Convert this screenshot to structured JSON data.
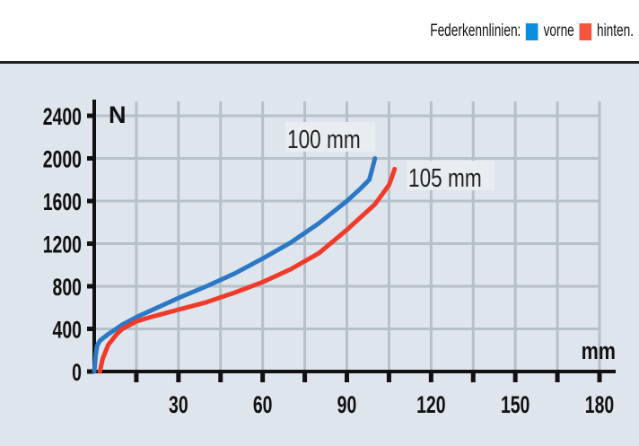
{
  "legend": {
    "title": "Federkennlinien:",
    "items": [
      {
        "label": "vorne",
        "color": "#0a8ee0"
      },
      {
        "label": "hinten.",
        "color": "#f4553a"
      }
    ]
  },
  "chart_data": {
    "type": "line",
    "title": "",
    "xlabel": "mm",
    "ylabel": "N",
    "xlim": [
      0,
      180
    ],
    "ylim": [
      0,
      2400
    ],
    "xticks": [
      30,
      60,
      90,
      120,
      150,
      180
    ],
    "yticks": [
      0,
      400,
      800,
      1200,
      1600,
      2000,
      2400
    ],
    "grid": true,
    "series": [
      {
        "name": "vorne",
        "color": "#2a78c6",
        "end_label": "100 mm",
        "x": [
          0,
          0.5,
          1,
          2,
          5,
          10,
          15,
          20,
          30,
          40,
          50,
          60,
          70,
          80,
          90,
          95,
          98,
          99,
          100
        ],
        "y": [
          0,
          150,
          240,
          290,
          350,
          440,
          510,
          570,
          690,
          800,
          920,
          1060,
          1210,
          1390,
          1600,
          1720,
          1800,
          1900,
          2000
        ]
      },
      {
        "name": "hinten",
        "color": "#f03a2a",
        "end_label": "105 mm",
        "x": [
          2,
          3,
          5,
          8,
          10,
          15,
          20,
          30,
          40,
          50,
          60,
          70,
          80,
          90,
          100,
          105,
          106,
          107
        ],
        "y": [
          0,
          120,
          250,
          350,
          400,
          470,
          510,
          580,
          650,
          740,
          840,
          960,
          1110,
          1330,
          1570,
          1750,
          1820,
          1900
        ]
      }
    ]
  }
}
